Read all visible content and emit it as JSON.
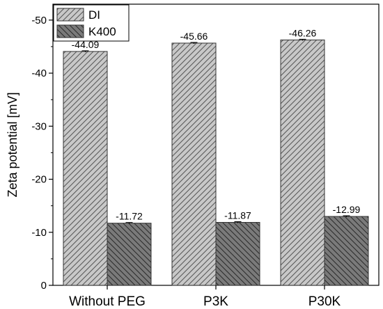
{
  "chart_data": {
    "type": "bar",
    "categories": [
      "Without PEG",
      "P3K",
      "P30K"
    ],
    "series": [
      {
        "name": "DI",
        "values": [
          -44.09,
          -45.66,
          -46.26
        ],
        "labels": [
          "-44.09",
          "-45.66",
          "-46.26"
        ],
        "color": "#c8c8c8",
        "hatch": "light-diagonal"
      },
      {
        "name": "K400",
        "values": [
          -11.72,
          -11.87,
          -12.99
        ],
        "labels": [
          "-11.72",
          "-11.87",
          "-12.99"
        ],
        "color": "#7a7a7a",
        "hatch": "dark-diagonal"
      }
    ],
    "xlabel": "",
    "ylabel": "Zeta potential [mV]",
    "ylim": [
      0,
      -53
    ],
    "yaxis_inverted": true,
    "yticks": [
      0,
      -10,
      -20,
      -30,
      -40,
      -50
    ],
    "ytick_labels": [
      "0",
      "-10",
      "-20",
      "-30",
      "-40",
      "-50"
    ],
    "error_bars": true,
    "legend_position": "top-left",
    "grid": false
  }
}
